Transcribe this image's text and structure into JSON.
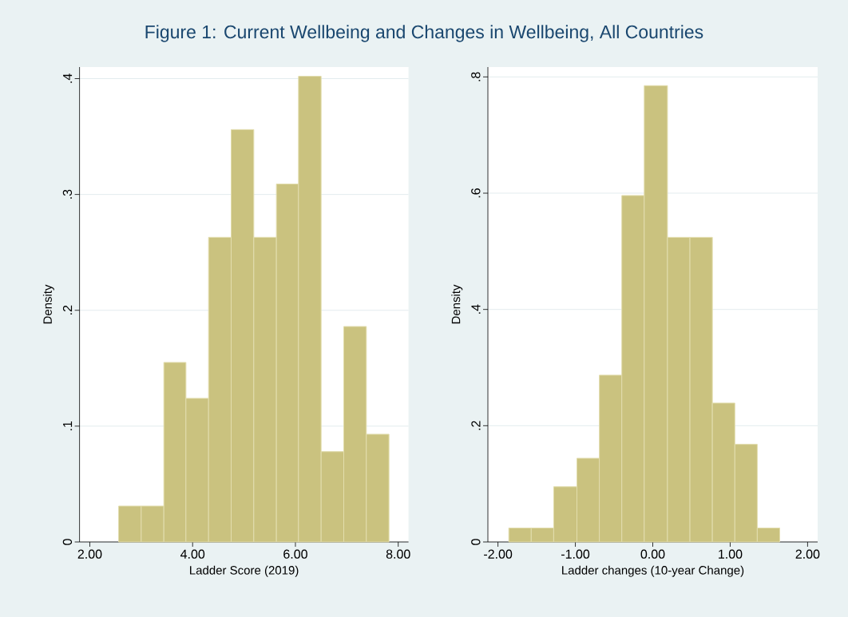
{
  "chart_data": [
    {
      "type": "histogram",
      "title": "Figure 1: Current Wellbeing and Changes in Wellbeing, All Countries",
      "xlabel": "Ladder Score (2019)",
      "ylabel": "Density",
      "color": "#cac27f",
      "bins": [
        2.56,
        3.0,
        3.44,
        3.87,
        4.31,
        4.75,
        5.19,
        5.63,
        6.06,
        6.5,
        6.94,
        7.38,
        7.82
      ],
      "values": [
        0.031,
        0.031,
        0.155,
        0.124,
        0.263,
        0.356,
        0.263,
        0.309,
        0.402,
        0.078,
        0.186,
        0.093
      ],
      "xlim": [
        1.8,
        8.2
      ],
      "ylim": [
        0,
        0.41
      ],
      "xticks": [
        {
          "value": 2,
          "label": "2.00"
        },
        {
          "value": 4,
          "label": "4.00"
        },
        {
          "value": 6,
          "label": "6.00"
        },
        {
          "value": 8,
          "label": "8.00"
        }
      ],
      "yticks": [
        0,
        {
          "value": 0.1,
          "label": ".1"
        },
        {
          "value": 0.2,
          "label": ".2"
        },
        {
          "value": 0.3,
          "label": ".3"
        },
        {
          "value": 0.4,
          "label": ".4"
        }
      ],
      "grid": "y"
    },
    {
      "type": "histogram",
      "xlabel": "Ladder changes (10-year Change)",
      "ylabel": "Density",
      "color": "#cac27f",
      "bins": [
        -1.86,
        -1.57,
        -1.28,
        -0.98,
        -0.69,
        -0.4,
        -0.11,
        0.19,
        0.48,
        0.77,
        1.06,
        1.35,
        1.64
      ],
      "values": [
        0.024,
        0.024,
        0.095,
        0.144,
        0.287,
        0.596,
        0.785,
        0.524,
        0.524,
        0.239,
        0.168,
        0.024
      ],
      "xlim": [
        -2.13,
        2.13
      ],
      "ylim": [
        0,
        0.817
      ],
      "xticks": [
        {
          "value": -2,
          "label": "-2.00"
        },
        {
          "value": -1,
          "label": "-1.00"
        },
        {
          "value": 0,
          "label": "0.00"
        },
        {
          "value": 1,
          "label": "1.00"
        },
        {
          "value": 2,
          "label": "2.00"
        }
      ],
      "yticks": [
        0,
        {
          "value": 0.2,
          "label": ".2"
        },
        {
          "value": 0.4,
          "label": ".4"
        },
        {
          "value": 0.6,
          "label": ".6"
        },
        {
          "value": 0.8,
          "label": ".8"
        }
      ],
      "grid": "y"
    }
  ]
}
